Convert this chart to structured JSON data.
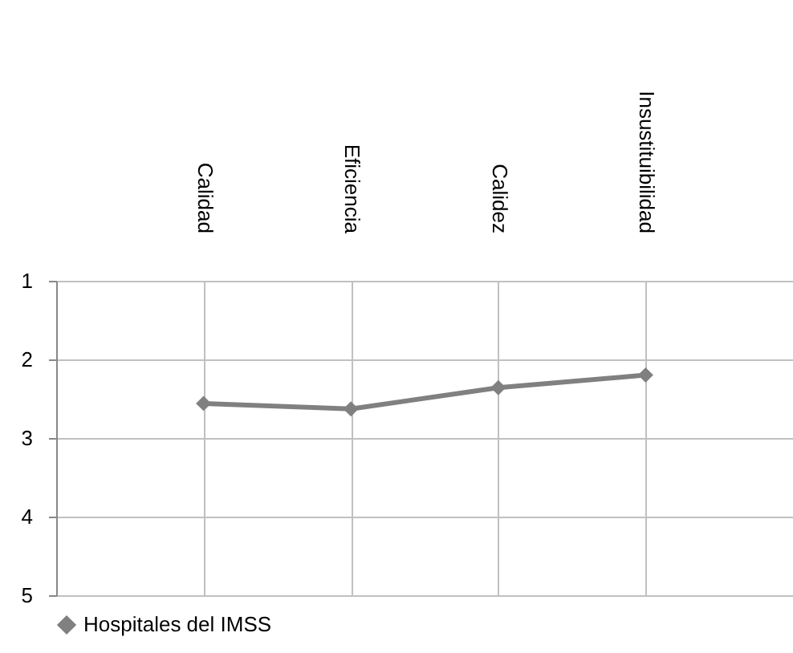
{
  "chart_data": {
    "type": "line",
    "categories": [
      "Calidad",
      "Eficiencia",
      "Calidez",
      "Insustituibilidad"
    ],
    "series": [
      {
        "name": "Hospitales del IMSS",
        "color": "#808080",
        "values": [
          2.56,
          2.63,
          2.36,
          2.2
        ]
      }
    ],
    "ylim": [
      5,
      1
    ],
    "yticks": [
      1,
      2,
      3,
      4,
      5
    ],
    "grid": true,
    "legend": "bottom",
    "marker": "diamond",
    "line_style": "solid"
  }
}
